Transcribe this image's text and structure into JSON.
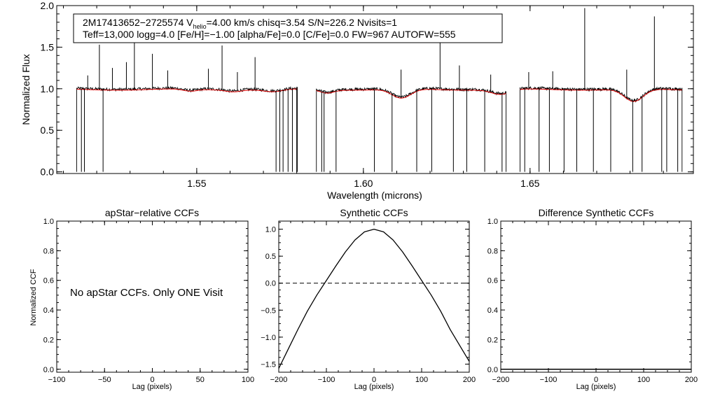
{
  "chart_data": [
    {
      "type": "line",
      "id": "spectrum",
      "title": "",
      "xlabel": "Wavelength (microns)",
      "ylabel": "Normalized Flux",
      "xlim": [
        1.508,
        1.699
      ],
      "ylim": [
        -0.02,
        2.0
      ],
      "x_ticks": [
        1.55,
        1.6,
        1.65
      ],
      "x_tick_labels": [
        "1.55",
        "1.60",
        "1.65"
      ],
      "y_ticks": [
        0.0,
        0.5,
        1.0,
        1.5,
        2.0
      ],
      "y_tick_labels": [
        "0.0",
        "0.5",
        "1.0",
        "1.5",
        "2.0"
      ],
      "info": {
        "line1_a": "2M17413652−2725574  V",
        "line1_sub": "helio",
        "line1_b": "=4.00 km/s  chisq=3.54  S/N=226.2  Nvisits=1",
        "line2": "Teff=13,000 logg=4.0 [Fe/H]=−1.00 [alpha/Fe]=0.0 [C/Fe]=0.0 FW=967 AUTOFW=555"
      },
      "chips": [
        [
          1.514,
          1.5802
        ],
        [
          1.5859,
          1.6428
        ],
        [
          1.647,
          1.6956
        ]
      ],
      "emission_lines": [
        [
          1.5173,
          1.16
        ],
        [
          1.5208,
          1.53
        ],
        [
          1.5247,
          1.25
        ],
        [
          1.5289,
          1.32
        ],
        [
          1.5313,
          1.63
        ],
        [
          1.5367,
          1.42
        ],
        [
          1.5413,
          1.22
        ],
        [
          1.5535,
          1.24
        ],
        [
          1.5576,
          1.52
        ],
        [
          1.5622,
          1.2
        ],
        [
          1.5675,
          1.38
        ],
        [
          1.6113,
          1.23
        ],
        [
          1.623,
          1.62
        ],
        [
          1.6288,
          1.28
        ],
        [
          1.6382,
          1.17
        ],
        [
          1.6496,
          1.2
        ],
        [
          1.6568,
          1.21
        ],
        [
          1.6664,
          1.97
        ],
        [
          1.679,
          1.23
        ],
        [
          1.6873,
          1.87
        ]
      ],
      "dropouts": [
        1.5154,
        1.5163,
        1.5219,
        1.5738,
        1.5749,
        1.5759,
        1.5774,
        1.5787,
        1.58,
        1.5875,
        1.5882,
        1.5918,
        1.6033,
        1.6086,
        1.616,
        1.6205,
        1.627,
        1.631,
        1.6364,
        1.6416,
        1.6484,
        1.6527,
        1.6558,
        1.6602,
        1.664,
        1.669,
        1.6742,
        1.6808,
        1.6836,
        1.6895,
        1.691,
        1.6943
      ],
      "absorption_dips": [
        [
          1.548,
          0.025,
          0.003
        ],
        [
          1.5609,
          0.02,
          0.003
        ],
        [
          1.573,
          0.03,
          0.004
        ],
        [
          1.589,
          0.04,
          0.003
        ],
        [
          1.6114,
          0.11,
          0.004
        ],
        [
          1.6412,
          0.06,
          0.004
        ],
        [
          1.6811,
          0.15,
          0.004
        ]
      ],
      "series": [
        {
          "name": "Observed spectrum",
          "color": "#000000"
        },
        {
          "name": "Best-fit model",
          "color": "#e00000"
        }
      ]
    },
    {
      "type": "line",
      "id": "apstar_ccf",
      "title": "apStar−relative CCFs",
      "xlabel": "Lag (pixels)",
      "ylabel": "Normalized CCF",
      "xlim": [
        -100,
        100
      ],
      "ylim": [
        -0.02,
        1.0
      ],
      "x_ticks": [
        -100,
        -50,
        0,
        50,
        100
      ],
      "x_tick_labels": [
        "−100",
        "−50",
        "0",
        "50",
        "100"
      ],
      "y_ticks": [
        0.0,
        0.2,
        0.4,
        0.6,
        0.8,
        1.0
      ],
      "y_tick_labels": [
        "0.0",
        "0.2",
        "0.4",
        "0.6",
        "0.8",
        "1.0"
      ],
      "message": "No apStar CCFs.  Only ONE Visit",
      "series": []
    },
    {
      "type": "line",
      "id": "synthetic_ccf",
      "title": "Synthetic CCFs",
      "xlabel": "Lag (pixels)",
      "ylabel": "",
      "xlim": [
        -200,
        200
      ],
      "ylim": [
        -1.65,
        1.15
      ],
      "x_ticks": [
        -200,
        -100,
        0,
        100,
        200
      ],
      "x_tick_labels": [
        "−200",
        "−100",
        "0",
        "100",
        "200"
      ],
      "y_ticks": [
        -1.5,
        -1.0,
        -0.5,
        0.0,
        0.5,
        1.0
      ],
      "y_tick_labels": [
        "−1.5",
        "−1.0",
        "−0.5",
        "0.0",
        "0.5",
        "1.0"
      ],
      "zero_line": 0.0,
      "series": [
        {
          "name": "Synthetic CCF",
          "x": [
            -200,
            -180,
            -160,
            -140,
            -120,
            -100,
            -80,
            -60,
            -40,
            -20,
            0,
            20,
            40,
            60,
            80,
            100,
            120,
            140,
            160,
            200
          ],
          "y": [
            -1.58,
            -1.22,
            -0.86,
            -0.52,
            -0.22,
            0.05,
            0.32,
            0.58,
            0.8,
            0.95,
            1.0,
            0.95,
            0.8,
            0.58,
            0.32,
            0.05,
            -0.22,
            -0.52,
            -0.86,
            -1.45
          ]
        }
      ]
    },
    {
      "type": "line",
      "id": "difference_ccf",
      "title": "Difference Synthetic CCFs",
      "xlabel": "Lag (pixels)",
      "ylabel": "",
      "xlim": [
        -200,
        200
      ],
      "ylim": [
        -0.02,
        1.0
      ],
      "x_ticks": [
        -200,
        -100,
        0,
        100,
        200
      ],
      "x_tick_labels": [
        "−200",
        "−100",
        "0",
        "100",
        "200"
      ],
      "y_ticks": [
        0.0,
        0.2,
        0.4,
        0.6,
        0.8,
        1.0
      ],
      "y_tick_labels": [
        "0.0",
        "0.2",
        "0.4",
        "0.6",
        "0.8",
        "1.0"
      ],
      "series": [
        {
          "name": "Difference CCF",
          "x": [
            -200,
            200
          ],
          "y": [
            0.0,
            0.0
          ]
        }
      ]
    }
  ]
}
